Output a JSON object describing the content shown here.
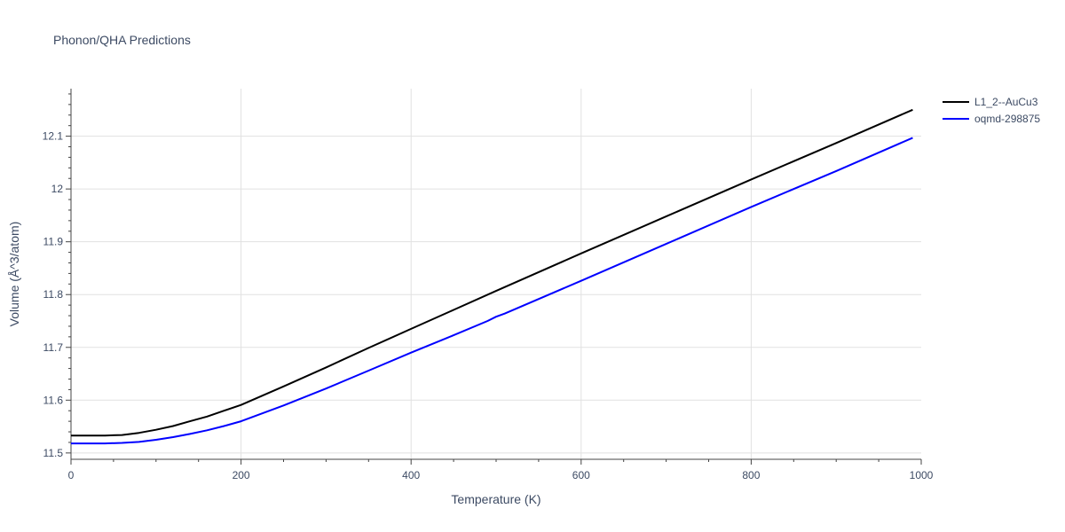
{
  "chart_data": {
    "type": "line",
    "title": "Phonon/QHA Predictions",
    "xlabel": "Temperature (K)",
    "ylabel": "Volume (Å^3/atom)",
    "xlim": [
      0,
      1000
    ],
    "ylim": [
      11.488,
      12.19
    ],
    "x_ticks": [
      0,
      200,
      400,
      600,
      800,
      1000
    ],
    "y_ticks": [
      11.5,
      11.6,
      11.7,
      11.8,
      11.9,
      12,
      12.1
    ],
    "x_tick_labels": [
      "0",
      "200",
      "400",
      "600",
      "800",
      "1000"
    ],
    "y_tick_labels": [
      "11.5",
      "11.6",
      "11.7",
      "11.8",
      "11.9",
      "12",
      "12.1"
    ],
    "grid": true,
    "legend_position": "top-right",
    "series": [
      {
        "name": "L1_2--AuCu3",
        "color": "#000000",
        "x": [
          0,
          20,
          40,
          60,
          80,
          100,
          120,
          140,
          160,
          180,
          200,
          250,
          300,
          350,
          400,
          450,
          500,
          600,
          700,
          800,
          900,
          990
        ],
        "y": [
          11.533,
          11.533,
          11.533,
          11.534,
          11.538,
          11.544,
          11.551,
          11.56,
          11.569,
          11.58,
          11.591,
          11.626,
          11.662,
          11.699,
          11.735,
          11.771,
          11.807,
          11.878,
          11.948,
          12.018,
          12.087,
          12.15
        ]
      },
      {
        "name": "oqmd-298875",
        "color": "#0000ff",
        "x": [
          0,
          20,
          40,
          60,
          80,
          100,
          120,
          140,
          160,
          180,
          200,
          250,
          300,
          350,
          400,
          450,
          490,
          500,
          510,
          600,
          700,
          800,
          900,
          990
        ],
        "y": [
          11.518,
          11.518,
          11.518,
          11.519,
          11.521,
          11.525,
          11.53,
          11.536,
          11.543,
          11.551,
          11.56,
          11.59,
          11.622,
          11.656,
          11.69,
          11.723,
          11.75,
          11.758,
          11.764,
          11.826,
          11.896,
          11.966,
          12.034,
          12.097
        ]
      }
    ]
  }
}
